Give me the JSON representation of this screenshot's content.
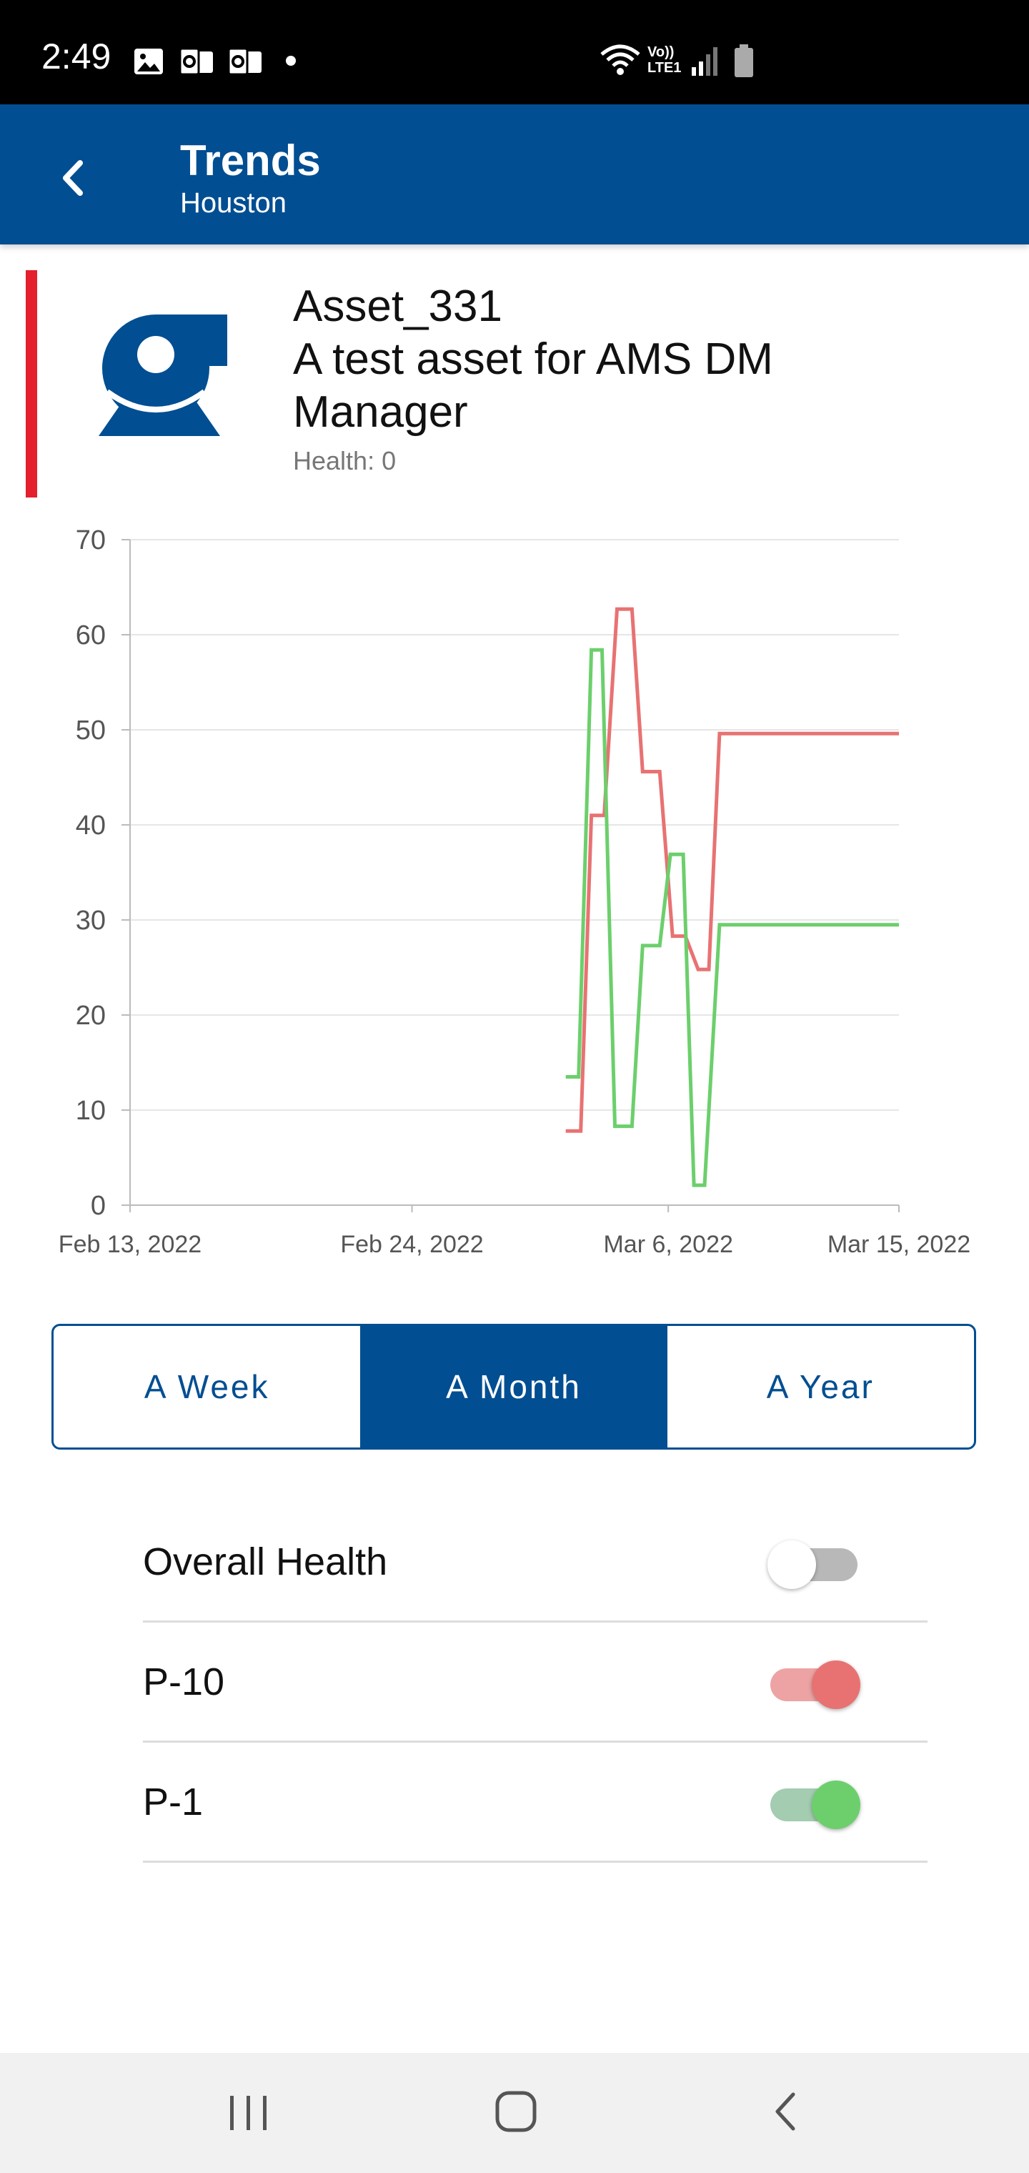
{
  "status_bar": {
    "time": "2:49",
    "icons": [
      "image-icon",
      "outlook-icon",
      "outlook-icon",
      "notification-dot-icon",
      "wifi-calling-icon",
      "volte-lte-icon",
      "signal-icon",
      "battery-icon"
    ],
    "volte_text": "Vo))",
    "lte_text": "LTE1"
  },
  "app_bar": {
    "title": "Trends",
    "subtitle": "Houston",
    "background_color": "#014e92"
  },
  "asset": {
    "name": "Asset_331",
    "description": "A test asset for AMS DM Manager",
    "health": "Health: 0",
    "status_color": "#e51f2b"
  },
  "chart_data": {
    "type": "line",
    "xlabel": "",
    "ylabel": "",
    "ylim": [
      0,
      70
    ],
    "yticks": [
      "0",
      "10",
      "20",
      "30",
      "40",
      "50",
      "60",
      "70"
    ],
    "x_tick_labels": [
      "Feb 13, 2022",
      "Feb 24, 2022",
      "Mar 6, 2022",
      "Mar 15, 2022"
    ],
    "x_tick_dates": [
      "2022-02-13",
      "2022-02-24",
      "2022-03-06",
      "2022-03-15"
    ],
    "grid": true,
    "series": [
      {
        "color": "#e87272",
        "points": [
          [
            "2022-03-02T00:00",
            7.8
          ],
          [
            "2022-03-02T14:00",
            7.8
          ],
          [
            "2022-03-03T00:00",
            41
          ],
          [
            "2022-03-03T12:00",
            41
          ],
          [
            "2022-03-04T00:00",
            62.7
          ],
          [
            "2022-03-04T14:00",
            62.7
          ],
          [
            "2022-03-05T00:00",
            45.6
          ],
          [
            "2022-03-05T16:00",
            45.6
          ],
          [
            "2022-03-06T04:00",
            28.3
          ],
          [
            "2022-03-06T16:00",
            28.3
          ],
          [
            "2022-03-07T04:00",
            24.8
          ],
          [
            "2022-03-07T14:00",
            24.8
          ],
          [
            "2022-03-08T00:00",
            49.6
          ],
          [
            "2022-03-15T00:00",
            49.6
          ]
        ]
      },
      {
        "color": "#6ccf6c",
        "points": [
          [
            "2022-03-02T00:00",
            13.5
          ],
          [
            "2022-03-02T12:00",
            13.5
          ],
          [
            "2022-03-03T00:00",
            58.4
          ],
          [
            "2022-03-03T10:00",
            58.4
          ],
          [
            "2022-03-03T22:00",
            8.3
          ],
          [
            "2022-03-04T14:00",
            8.3
          ],
          [
            "2022-03-05T00:00",
            27.3
          ],
          [
            "2022-03-05T16:00",
            27.3
          ],
          [
            "2022-03-06T02:00",
            36.9
          ],
          [
            "2022-03-06T14:00",
            36.9
          ],
          [
            "2022-03-07T00:00",
            2.1
          ],
          [
            "2022-03-07T10:00",
            2.1
          ],
          [
            "2022-03-08T00:00",
            29.5
          ],
          [
            "2022-03-15T00:00",
            29.5
          ]
        ]
      }
    ]
  },
  "range_selector": {
    "options": [
      "A Week",
      "A Month",
      "A Year"
    ],
    "selected": "A Month"
  },
  "toggles": [
    {
      "label": "Overall Health",
      "on": false,
      "color": "#9e9e9e"
    },
    {
      "label": "P-10",
      "on": true,
      "color": "#e87272"
    },
    {
      "label": "P-1",
      "on": true,
      "color": "#6ccf6c"
    }
  ],
  "nav_bar": {
    "icons": [
      "recent-apps-icon",
      "home-icon",
      "back-icon"
    ]
  }
}
